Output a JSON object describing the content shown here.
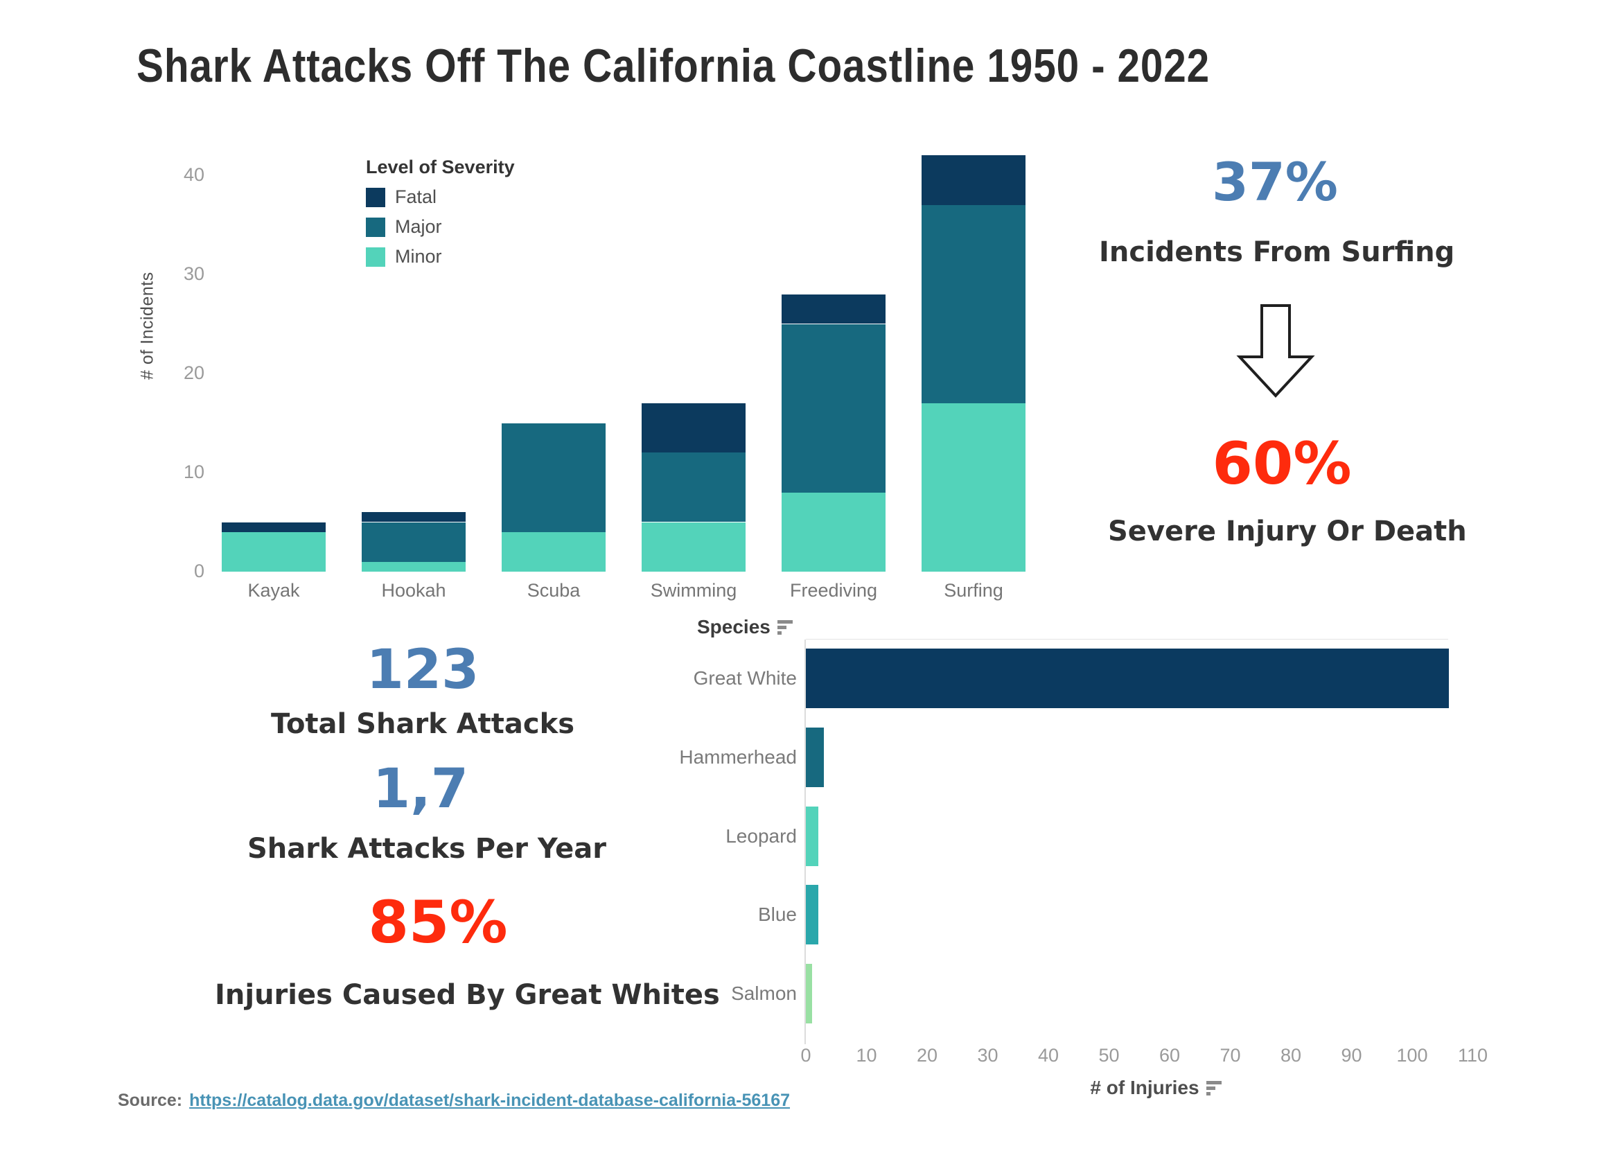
{
  "title": "Shark Attacks Off The California Coastline 1950 - 2022",
  "chart_data": [
    {
      "id": "incidents-by-activity",
      "type": "bar",
      "subtype": "stacked-vertical",
      "legend_title": "Level of Severity",
      "legend_position": "inside-top-left",
      "ylabel": "# of Incidents",
      "yticks": [
        0,
        10,
        20,
        30,
        40
      ],
      "ylim": [
        0,
        42
      ],
      "grid": false,
      "categories": [
        "Kayak",
        "Hookah",
        "Scuba",
        "Swimming",
        "Freediving",
        "Surfing"
      ],
      "series": [
        {
          "name": "Fatal",
          "color": "#0c3a5e",
          "values": [
            1,
            1,
            0,
            5,
            3,
            5
          ]
        },
        {
          "name": "Major",
          "color": "#17697f",
          "values": [
            0,
            4,
            11,
            7,
            17,
            20
          ]
        },
        {
          "name": "Minor",
          "color": "#53d3ba",
          "values": [
            4,
            1,
            4,
            5,
            8,
            17
          ]
        }
      ]
    },
    {
      "id": "injuries-by-species",
      "type": "bar",
      "subtype": "horizontal",
      "header": "Species",
      "xlabel": "# of Injuries",
      "xticks": [
        0,
        10,
        20,
        30,
        40,
        50,
        60,
        70,
        80,
        90,
        100,
        110
      ],
      "xlim": [
        0,
        110
      ],
      "grid": false,
      "sort": "descending",
      "categories": [
        "Great White",
        "Hammerhead",
        "Leopard",
        "Blue",
        "Salmon"
      ],
      "values": [
        106,
        3,
        2,
        2,
        1
      ],
      "bar_colors": [
        "#0b3a60",
        "#17697f",
        "#53d3ba",
        "#2aa7ab",
        "#99e0a3"
      ]
    }
  ],
  "stats": {
    "surfing_pct": {
      "value": "37%",
      "label": "Incidents From Surfing",
      "color": "#4c7db2"
    },
    "severe_pct": {
      "value": "60%",
      "label": "Severe Injury Or Death",
      "color": "#fe2b0d"
    },
    "total_attacks": {
      "value": "123",
      "label": "Total Shark Attacks",
      "color": "#4c7db2"
    },
    "attacks_per_year": {
      "value": "1,7",
      "label": "Shark Attacks Per Year",
      "color": "#4c7db2"
    },
    "great_white_pct": {
      "value": "85%",
      "label": "Injuries Caused By Great Whites",
      "color": "#fe2b0d"
    }
  },
  "icons": {
    "down_arrow": "hollow-down-arrow",
    "sort": "sort-descending"
  },
  "source": {
    "label": "Source:",
    "url_text": "https://catalog.data.gov/dataset/shark-incident-database-california-56167",
    "link_color": "#4893b5"
  }
}
